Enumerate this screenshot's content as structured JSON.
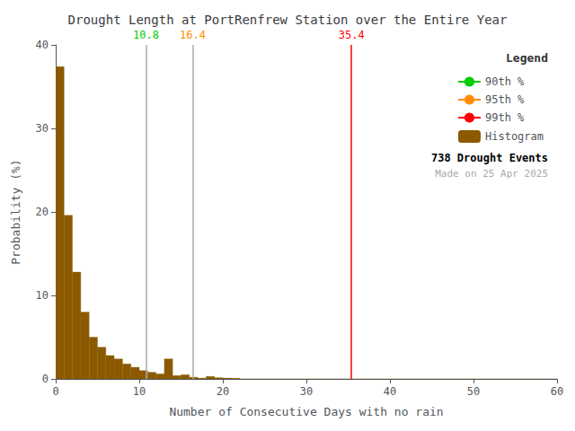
{
  "chart_data": {
    "type": "histogram",
    "title": "Drought Length at PortRenfrew Station over the Entire Year",
    "xlabel": "Number of Consecutive Days with no rain",
    "ylabel": "Probability (%)",
    "series_name": "Histogram",
    "color": "#8B5A00",
    "bins": [
      0,
      1,
      2,
      3,
      4,
      5,
      6,
      7,
      8,
      9,
      10,
      11,
      12,
      13,
      14,
      15,
      16,
      17,
      18,
      19,
      20,
      21,
      22,
      23,
      24,
      25,
      26,
      27,
      28,
      29,
      30,
      31,
      32,
      33,
      34,
      35,
      36,
      37,
      38,
      39,
      40,
      41,
      42,
      43,
      44,
      45,
      46,
      47,
      48,
      49,
      50,
      51,
      52,
      53,
      54,
      55,
      56,
      57,
      58,
      59,
      60
    ],
    "values": [
      37.4,
      19.6,
      12.8,
      8.0,
      5.0,
      3.8,
      2.8,
      2.4,
      1.8,
      1.4,
      1.0,
      0.8,
      0.6,
      2.4,
      0.4,
      0.5,
      0.2,
      0.1,
      0.3,
      0.15,
      0.1,
      0.08,
      0.0,
      0.0,
      0.0,
      0.0,
      0.0,
      0.0,
      0.0,
      0.0,
      0.0,
      0.0,
      0.0,
      0.0,
      0.0,
      0.0,
      0.0,
      0.0,
      0.0,
      0.0,
      0.0,
      0.0,
      0.0,
      0.0,
      0.0,
      0.0,
      0.0,
      0.0,
      0.0,
      0.0,
      0.0,
      0.0,
      0.0,
      0.0,
      0.0,
      0.0,
      0.0,
      0.0,
      0.0,
      0.0
    ],
    "xlim": [
      0,
      60
    ],
    "ylim": [
      0,
      40
    ],
    "xticks": [
      0,
      10,
      20,
      30,
      40,
      50,
      60
    ],
    "yticks": [
      0,
      10,
      20,
      30,
      40
    ],
    "grid": false,
    "legend": "upper right",
    "legend_title": "Legend",
    "vlines": [
      {
        "name": "90th %",
        "x": 10.8,
        "color": "#AAAAAA",
        "label_color": "#00CC00"
      },
      {
        "name": "95th %",
        "x": 16.4,
        "color": "#AAAAAA",
        "label_color": "#FF8C00"
      },
      {
        "name": "99th %",
        "x": 35.4,
        "color": "#FF0000",
        "label_color": "#FF0000"
      }
    ],
    "annotations": [
      {
        "text": "738 Drought Events",
        "color": "#000000"
      },
      {
        "text": "Made on 25 Apr 2025",
        "color": "#AAAAAA"
      }
    ]
  }
}
